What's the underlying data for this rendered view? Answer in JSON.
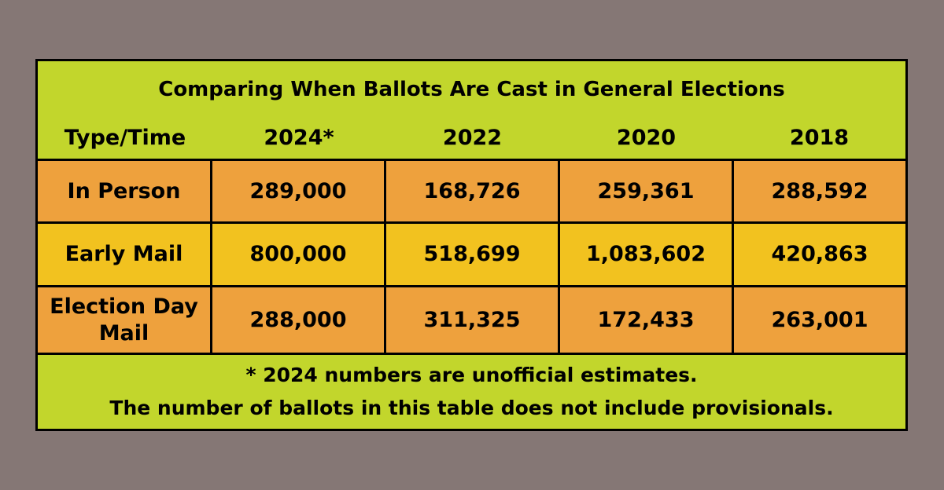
{
  "chart_data": {
    "type": "table",
    "title": "Comparing When Ballots Are Cast in General Elections",
    "row_header_label": "Type/Time",
    "columns": [
      "2024*",
      "2022",
      "2020",
      "2018"
    ],
    "rows": [
      {
        "label": "In Person",
        "values": [
          "289,000",
          "168,726",
          "259,361",
          "288,592"
        ]
      },
      {
        "label": "Early Mail",
        "values": [
          "800,000",
          "518,699",
          "1,083,602",
          "420,863"
        ]
      },
      {
        "label_lines": [
          "Election Day",
          "Mail"
        ],
        "values": [
          "288,000",
          "311,325",
          "172,433",
          "263,001"
        ]
      }
    ],
    "footnotes": [
      "* 2024 numbers are unofficial estimates.",
      "The number of ballots in this table does not include provisionals."
    ]
  },
  "colors": {
    "background": "#857775",
    "header_band": "#c2d62c",
    "row_orange": "#eea13d",
    "row_gold": "#f2c21f",
    "border": "#000000"
  }
}
